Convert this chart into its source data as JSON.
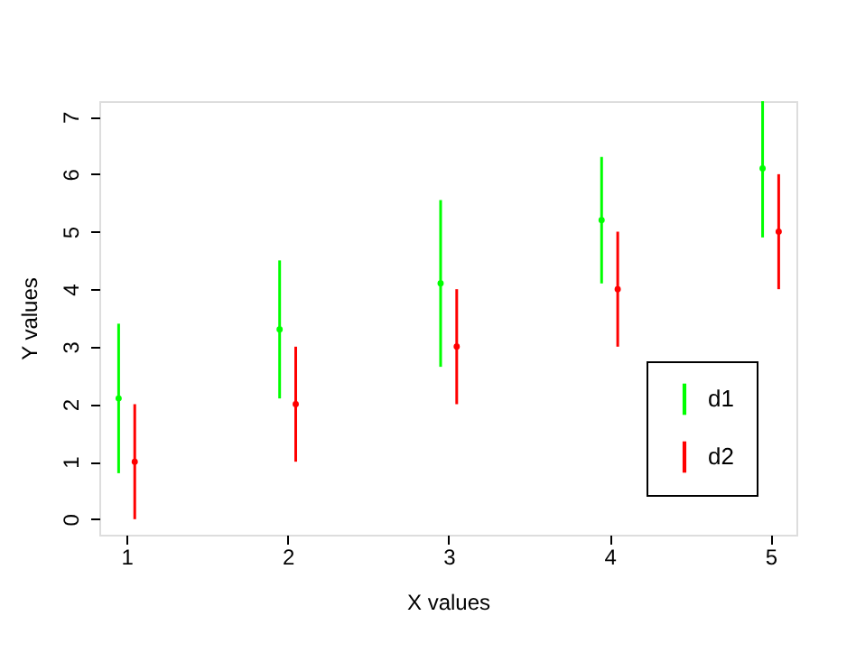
{
  "chart_data": {
    "type": "scatter",
    "xlabel": "X values",
    "ylabel": "Y values",
    "xlim": [
      0.83,
      5.16
    ],
    "xticks": [
      1,
      2,
      3,
      4,
      5
    ],
    "ylim": [
      -0.27,
      7.27
    ],
    "yticks": [
      0,
      1,
      2,
      3,
      4,
      5,
      6,
      7
    ],
    "grid": false,
    "legend": "bottom right",
    "marker": "circle",
    "series": [
      {
        "name": "d1",
        "color": "#00ff00",
        "x": [
          0.95,
          1.95,
          2.95,
          3.95,
          4.95
        ],
        "values": [
          2.1,
          3.3,
          4.1,
          5.2,
          6.1
        ],
        "errors": [
          [
            0.8,
            3.4
          ],
          [
            2.1,
            4.5
          ],
          [
            2.65,
            5.55
          ],
          [
            4.1,
            6.3
          ],
          [
            4.9,
            7.27
          ]
        ]
      },
      {
        "name": "d2",
        "color": "#ff0000",
        "x": [
          1.05,
          2.05,
          3.05,
          4.05,
          5.05
        ],
        "values": [
          1,
          2,
          3,
          4,
          5
        ],
        "errors": [
          [
            0,
            2
          ],
          [
            1,
            3
          ],
          [
            2,
            4
          ],
          [
            3,
            5
          ],
          [
            4,
            6
          ]
        ]
      }
    ]
  }
}
